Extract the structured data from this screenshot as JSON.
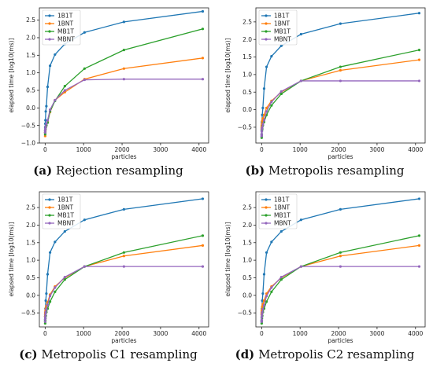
{
  "chart_data": [
    {
      "type": "line",
      "caption_letter": "(a)",
      "caption_text": "Rejection resampling",
      "xlabel": "particles",
      "ylabel": "elapsed time [log10(ms)]",
      "xlim": [
        -150,
        4250
      ],
      "ylim": [
        -1.0,
        2.85
      ],
      "xticks": [
        0,
        1000,
        2000,
        3000,
        4000
      ],
      "yticks": [
        -1.0,
        -0.5,
        0.0,
        0.5,
        1.0,
        1.5,
        2.0,
        2.5
      ],
      "ytick_labels": [
        "−1.0",
        "−0.5",
        "0.0",
        "0.5",
        "1.0",
        "1.5",
        "2.0",
        "2.5"
      ],
      "legend_position": "top-left",
      "x": [
        1,
        2,
        4,
        8,
        16,
        32,
        64,
        128,
        256,
        512,
        1024,
        2048,
        4096
      ],
      "series": [
        {
          "name": "1B1T",
          "color": "#1f77b4",
          "values": [
            -0.65,
            -0.55,
            -0.45,
            -0.35,
            -0.1,
            0.05,
            0.6,
            1.2,
            1.52,
            1.82,
            2.15,
            2.45,
            2.75
          ]
        },
        {
          "name": "1BNT",
          "color": "#ff7f0e",
          "values": [
            -0.8,
            -0.7,
            -0.68,
            -0.62,
            -0.55,
            -0.5,
            -0.4,
            -0.12,
            0.22,
            0.45,
            0.82,
            1.12,
            1.42
          ]
        },
        {
          "name": "MB1T",
          "color": "#2ca02c",
          "values": [
            -0.75,
            -0.7,
            -0.65,
            -0.6,
            -0.55,
            -0.5,
            -0.42,
            -0.1,
            0.2,
            0.62,
            1.12,
            1.65,
            2.25
          ]
        },
        {
          "name": "MBNT",
          "color": "#9467bd",
          "values": [
            -0.7,
            -0.65,
            -0.62,
            -0.58,
            -0.52,
            -0.45,
            -0.35,
            -0.05,
            0.22,
            0.5,
            0.8,
            0.82,
            0.82
          ]
        }
      ]
    },
    {
      "type": "line",
      "caption_letter": "(b)",
      "caption_text": "Metropolis resampling",
      "xlabel": "particles",
      "ylabel": "elapsed time [log10(ms)]",
      "xlim": [
        -150,
        4250
      ],
      "ylim": [
        -0.95,
        2.9
      ],
      "xticks": [
        0,
        1000,
        2000,
        3000,
        4000
      ],
      "yticks": [
        -0.5,
        0.0,
        0.5,
        1.0,
        1.5,
        2.0,
        2.5
      ],
      "ytick_labels": [
        "−0.5",
        "0.0",
        "0.5",
        "1.0",
        "1.5",
        "2.0",
        "2.5"
      ],
      "legend_position": "top-left",
      "x": [
        1,
        2,
        4,
        8,
        16,
        32,
        64,
        128,
        256,
        512,
        1024,
        2048,
        4096
      ],
      "series": [
        {
          "name": "1B1T",
          "color": "#1f77b4",
          "values": [
            -0.7,
            -0.6,
            -0.5,
            -0.35,
            -0.15,
            0.05,
            0.6,
            1.22,
            1.52,
            1.82,
            2.15,
            2.45,
            2.75
          ]
        },
        {
          "name": "1BNT",
          "color": "#ff7f0e",
          "values": [
            -0.55,
            -0.5,
            -0.45,
            -0.4,
            -0.32,
            -0.25,
            -0.15,
            0.05,
            0.25,
            0.5,
            0.82,
            1.12,
            1.42
          ]
        },
        {
          "name": "MB1T",
          "color": "#2ca02c",
          "values": [
            -0.8,
            -0.75,
            -0.7,
            -0.6,
            -0.55,
            -0.45,
            -0.35,
            -0.15,
            0.12,
            0.45,
            0.82,
            1.22,
            1.7
          ]
        },
        {
          "name": "MBNT",
          "color": "#9467bd",
          "values": [
            -0.75,
            -0.7,
            -0.62,
            -0.55,
            -0.5,
            -0.42,
            -0.3,
            -0.05,
            0.22,
            0.52,
            0.82,
            0.82,
            0.82
          ]
        }
      ]
    },
    {
      "type": "line",
      "caption_letter": "(c)",
      "caption_text": "Metropolis C1 resampling",
      "xlabel": "particles",
      "ylabel": "elapsed time [log10(ms)]",
      "xlim": [
        -150,
        4250
      ],
      "ylim": [
        -0.9,
        2.95
      ],
      "xticks": [
        0,
        1000,
        2000,
        3000,
        4000
      ],
      "yticks": [
        -0.5,
        0.0,
        0.5,
        1.0,
        1.5,
        2.0,
        2.5
      ],
      "ytick_labels": [
        "−0.5",
        "0.0",
        "0.5",
        "1.0",
        "1.5",
        "2.0",
        "2.5"
      ],
      "legend_position": "top-left",
      "x": [
        1,
        2,
        4,
        8,
        16,
        32,
        64,
        128,
        256,
        512,
        1024,
        2048,
        4096
      ],
      "series": [
        {
          "name": "1B1T",
          "color": "#1f77b4",
          "values": [
            -0.7,
            -0.6,
            -0.5,
            -0.38,
            -0.15,
            0.05,
            0.6,
            1.22,
            1.52,
            1.82,
            2.15,
            2.45,
            2.75
          ]
        },
        {
          "name": "1BNT",
          "color": "#ff7f0e",
          "values": [
            -0.6,
            -0.55,
            -0.5,
            -0.45,
            -0.38,
            -0.3,
            -0.2,
            0.02,
            0.25,
            0.5,
            0.82,
            1.12,
            1.42
          ]
        },
        {
          "name": "MB1T",
          "color": "#2ca02c",
          "values": [
            -0.8,
            -0.75,
            -0.72,
            -0.65,
            -0.58,
            -0.48,
            -0.38,
            -0.18,
            0.1,
            0.45,
            0.82,
            1.22,
            1.7
          ]
        },
        {
          "name": "MBNT",
          "color": "#9467bd",
          "values": [
            -0.75,
            -0.68,
            -0.62,
            -0.55,
            -0.48,
            -0.4,
            -0.28,
            -0.02,
            0.22,
            0.52,
            0.82,
            0.82,
            0.82
          ]
        }
      ]
    },
    {
      "type": "line",
      "caption_letter": "(d)",
      "caption_text": "Metropolis C2 resampling",
      "xlabel": "particles",
      "ylabel": "elapsed time [log10(ms)]",
      "xlim": [
        -150,
        4250
      ],
      "ylim": [
        -0.9,
        2.95
      ],
      "xticks": [
        0,
        1000,
        2000,
        3000,
        4000
      ],
      "yticks": [
        -0.5,
        0.0,
        0.5,
        1.0,
        1.5,
        2.0,
        2.5
      ],
      "ytick_labels": [
        "−0.5",
        "0.0",
        "0.5",
        "1.0",
        "1.5",
        "2.0",
        "2.5"
      ],
      "legend_position": "top-left",
      "x": [
        1,
        2,
        4,
        8,
        16,
        32,
        64,
        128,
        256,
        512,
        1024,
        2048,
        4096
      ],
      "series": [
        {
          "name": "1B1T",
          "color": "#1f77b4",
          "values": [
            -0.72,
            -0.62,
            -0.5,
            -0.38,
            -0.15,
            0.05,
            0.6,
            1.22,
            1.52,
            1.82,
            2.15,
            2.45,
            2.75
          ]
        },
        {
          "name": "1BNT",
          "color": "#ff7f0e",
          "values": [
            -0.55,
            -0.5,
            -0.45,
            -0.4,
            -0.32,
            -0.25,
            -0.15,
            0.05,
            0.25,
            0.5,
            0.82,
            1.12,
            1.42
          ]
        },
        {
          "name": "MB1T",
          "color": "#2ca02c",
          "values": [
            -0.8,
            -0.75,
            -0.72,
            -0.65,
            -0.58,
            -0.48,
            -0.38,
            -0.18,
            0.1,
            0.45,
            0.82,
            1.22,
            1.7
          ]
        },
        {
          "name": "MBNT",
          "color": "#9467bd",
          "values": [
            -0.75,
            -0.7,
            -0.62,
            -0.55,
            -0.48,
            -0.4,
            -0.28,
            -0.02,
            0.22,
            0.52,
            0.82,
            0.82,
            0.82
          ]
        }
      ]
    }
  ]
}
